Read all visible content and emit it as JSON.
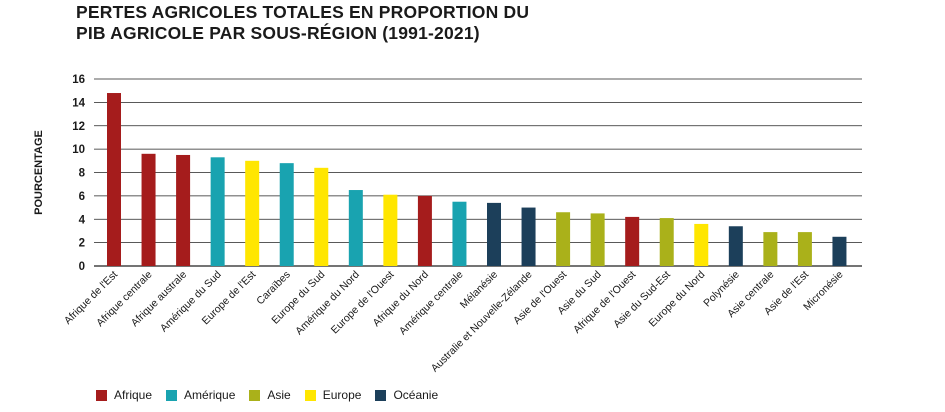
{
  "title_lines": [
    "PERTES AGRICOLES TOTALES EN PROPORTION DU",
    "PIB AGRICOLE PAR SOUS-RÉGION (1991-2021)"
  ],
  "colors": {
    "Afrique": "#a51c1c",
    "Amérique": "#19a3b0",
    "Asie": "#aab11a",
    "Europe": "#ffe600",
    "Océanie": "#1c3f5a"
  },
  "legend": [
    {
      "label": "Afrique",
      "color_key": "Afrique"
    },
    {
      "label": "Amérique",
      "color_key": "Amérique"
    },
    {
      "label": "Asie",
      "color_key": "Asie"
    },
    {
      "label": "Europe",
      "color_key": "Europe"
    },
    {
      "label": "Océanie",
      "color_key": "Océanie"
    }
  ],
  "chart_data": {
    "type": "bar",
    "title": "PERTES AGRICOLES TOTALES EN PROPORTION DU PIB AGRICOLE PAR SOUS-RÉGION (1991-2021)",
    "xlabel": "",
    "ylabel": "POURCENTAGE",
    "ylim": [
      0,
      16
    ],
    "yticks": [
      0,
      2,
      4,
      6,
      8,
      10,
      12,
      14,
      16
    ],
    "grid": true,
    "legend_position": "bottom-left",
    "categories": [
      "Afrique de l'Est",
      "Afrique centrale",
      "Afrique australe",
      "Amérique du Sud",
      "Europe de l'Est",
      "Caraïbes",
      "Europe du Sud",
      "Amérique du Nord",
      "Europe de l'Ouest",
      "Afrique du Nord",
      "Amérique centrale",
      "Mélanésie",
      "Australie et Nouvelle-Zélande",
      "Asie de l'Ouest",
      "Asie du Sud",
      "Afrique de l'Ouest",
      "Asie du Sud-Est",
      "Europe du Nord",
      "Polynésie",
      "Asie centrale",
      "Asie de l'Est",
      "Micronésie"
    ],
    "values": [
      14.8,
      9.6,
      9.5,
      9.3,
      9.0,
      8.8,
      8.4,
      6.5,
      6.1,
      6.0,
      5.5,
      5.4,
      5.0,
      4.6,
      4.5,
      4.2,
      4.1,
      3.6,
      3.4,
      2.9,
      2.9,
      2.5
    ],
    "groups": [
      "Afrique",
      "Afrique",
      "Afrique",
      "Amérique",
      "Europe",
      "Amérique",
      "Europe",
      "Amérique",
      "Europe",
      "Afrique",
      "Amérique",
      "Océanie",
      "Océanie",
      "Asie",
      "Asie",
      "Afrique",
      "Asie",
      "Europe",
      "Océanie",
      "Asie",
      "Asie",
      "Océanie"
    ]
  }
}
